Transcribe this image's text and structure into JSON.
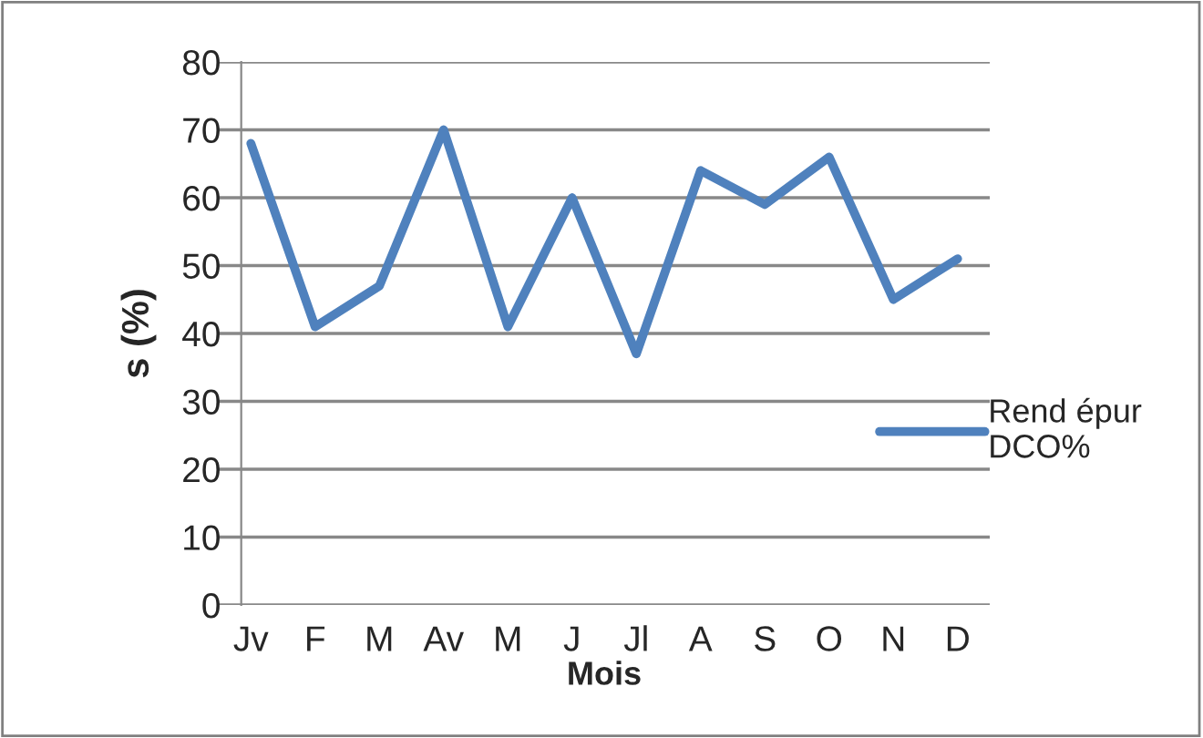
{
  "chart_data": {
    "type": "line",
    "xlabel": "Mois",
    "ylabel": "s (%)",
    "categories": [
      "Jv",
      "F",
      "M",
      "Av",
      "M",
      "J",
      "Jl",
      "A",
      "S",
      "O",
      "N",
      "D"
    ],
    "series": [
      {
        "name": "Rend épur DCO%",
        "color": "#4f81bd",
        "values": [
          68,
          41,
          47,
          70,
          41,
          60,
          37,
          64,
          59,
          66,
          45,
          51
        ]
      }
    ],
    "ylim": [
      0,
      80
    ],
    "yticks": [
      0,
      10,
      20,
      30,
      40,
      50,
      60,
      70,
      80
    ],
    "grid": "y",
    "legend": "right",
    "marker": "none",
    "line_style": "solid"
  }
}
